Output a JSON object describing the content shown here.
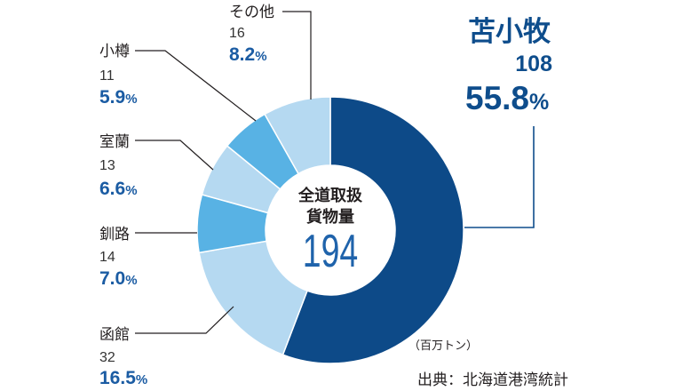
{
  "chart_data": {
    "type": "pie",
    "center": {
      "line1": "全道取扱",
      "line2": "貨物量",
      "total": 194
    },
    "percent_unit": "%",
    "slices": [
      {
        "label": "苫小牧",
        "value": 108,
        "percent": "55.8",
        "color": "#0d4a88"
      },
      {
        "label": "函館",
        "value": 32,
        "percent": "16.5",
        "color": "#b5d9f1"
      },
      {
        "label": "釧路",
        "value": 14,
        "percent": "7.0",
        "color": "#58b2e4"
      },
      {
        "label": "室蘭",
        "value": 13,
        "percent": "6.6",
        "color": "#b5d9f1"
      },
      {
        "label": "小樽",
        "value": 11,
        "percent": "5.9",
        "color": "#58b2e4"
      },
      {
        "label": "その他",
        "value": 16,
        "percent": "8.2",
        "color": "#b5d9f1"
      }
    ],
    "unit_note": "（百万トン）",
    "source": "出典：北海道港湾統計"
  }
}
